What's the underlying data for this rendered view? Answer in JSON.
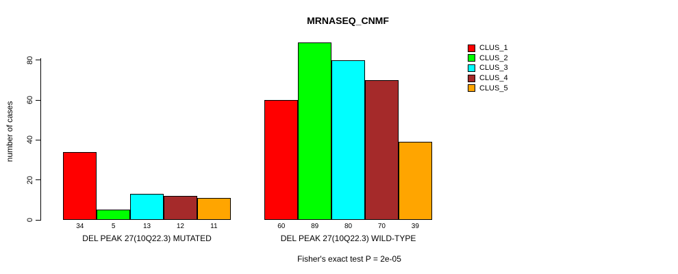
{
  "title": "MRNASEQ_CNMF",
  "chart_data": {
    "type": "bar",
    "title": "MRNASEQ_CNMF",
    "xlabel": "",
    "ylabel": "number of cases",
    "categories": [
      "DEL PEAK 27(10Q22.3) MUTATED",
      "DEL PEAK 27(10Q22.3) WILD-TYPE"
    ],
    "series": [
      {
        "name": "CLUS_1",
        "color": "#FF0000",
        "values": [
          34,
          60
        ]
      },
      {
        "name": "CLUS_2",
        "color": "#00FF00",
        "values": [
          5,
          89
        ]
      },
      {
        "name": "CLUS_3",
        "color": "#00FFFF",
        "values": [
          13,
          80
        ]
      },
      {
        "name": "CLUS_4",
        "color": "#A52A2A",
        "values": [
          12,
          70
        ]
      },
      {
        "name": "CLUS_5",
        "color": "#FFA500",
        "values": [
          11,
          39
        ]
      }
    ],
    "bar_value_labels": [
      [
        "34",
        "5",
        "13",
        "12",
        "11"
      ],
      [
        "60",
        "89",
        "80",
        "70",
        "39"
      ]
    ],
    "yticks": [
      0,
      20,
      40,
      60,
      80
    ],
    "ylim": [
      0,
      89
    ],
    "grid": false,
    "legend_position": "right",
    "annotation": "Fisher's exact test P = 2e-05"
  }
}
